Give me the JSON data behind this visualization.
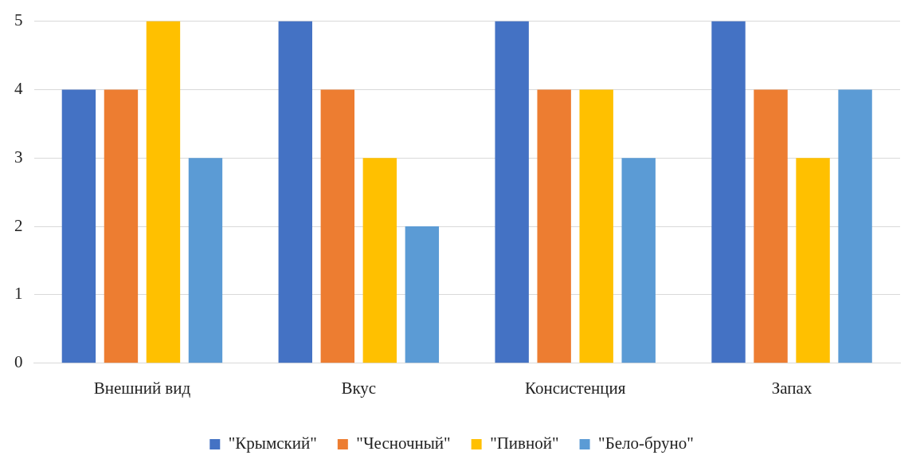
{
  "chart_data": {
    "type": "bar",
    "categories": [
      "Внешний вид",
      "Вкус",
      "Консистенция",
      "Запах"
    ],
    "series": [
      {
        "name": "\"Крымский\"",
        "color": "#4472c4",
        "values": [
          4,
          5,
          5,
          5
        ]
      },
      {
        "name": "\"Чесночный\"",
        "color": "#ed7d31",
        "values": [
          4,
          4,
          4,
          4
        ]
      },
      {
        "name": "\"Пивной\"",
        "color": "#ffc000",
        "values": [
          5,
          3,
          4,
          3
        ]
      },
      {
        "name": "\"Бело-бруно\"",
        "color": "#5b9bd5",
        "values": [
          3,
          2,
          3,
          4
        ]
      }
    ],
    "ylim": [
      0,
      5
    ],
    "yticks": [
      0,
      1,
      2,
      3,
      4,
      5
    ],
    "grid": "y",
    "legend": "bottom"
  }
}
